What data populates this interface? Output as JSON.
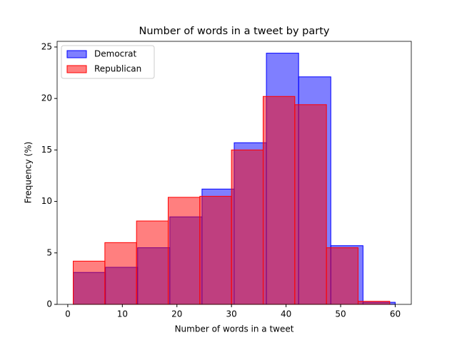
{
  "chart_data": {
    "type": "histogram",
    "title": "Number of words in a tweet by party",
    "xlabel": "Number of words in a tweet",
    "ylabel": "Frequency (%)",
    "series": [
      {
        "name": "Democrat",
        "color": "#0000ff",
        "bins": [
          1,
          6.9,
          12.8,
          18.7,
          24.6,
          30.5,
          36.4,
          42.3,
          48.2,
          54.1,
          60
        ],
        "values": [
          3.1,
          3.6,
          5.5,
          8.5,
          11.2,
          15.7,
          24.4,
          22.1,
          5.7,
          0.2
        ]
      },
      {
        "name": "Republican",
        "color": "#ff0000",
        "bins": [
          1,
          6.8,
          12.6,
          18.4,
          24.2,
          30,
          35.8,
          41.6,
          47.4,
          53.2,
          59
        ],
        "values": [
          4.2,
          6.0,
          8.1,
          10.4,
          10.5,
          15.0,
          20.2,
          19.4,
          5.5,
          0.3
        ]
      }
    ],
    "xlim": [
      -1.95,
      62.95
    ],
    "ylim": [
      0,
      25.55
    ],
    "xticks": [
      0,
      10,
      20,
      30,
      40,
      50,
      60
    ],
    "yticks": [
      0,
      5,
      10,
      15,
      20,
      25
    ],
    "legend": "upper left"
  }
}
